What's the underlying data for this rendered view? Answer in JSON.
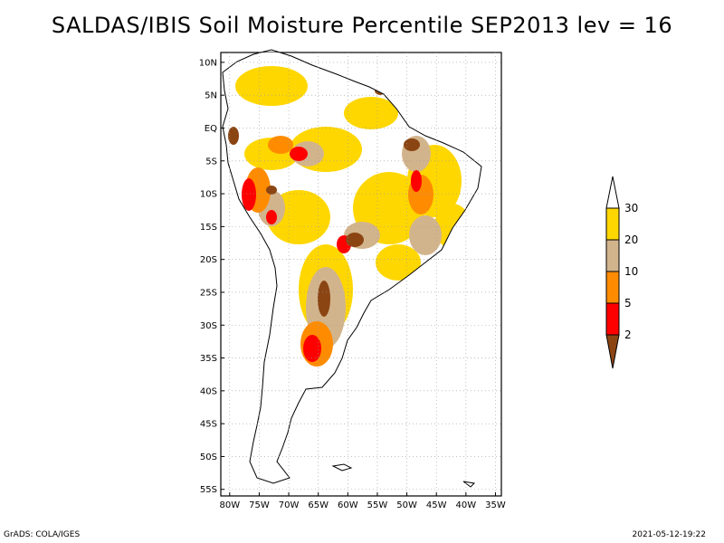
{
  "title": "SALDAS/IBIS Soil Moisture Percentile SEP2013 lev = 16",
  "footer": {
    "credit": "GrADS: COLA/IGES",
    "timestamp": "2021-05-12-19:22"
  },
  "map": {
    "lat_ticks": [
      "10N",
      "5N",
      "EQ",
      "5S",
      "10S",
      "15S",
      "20S",
      "25S",
      "30S",
      "35S",
      "40S",
      "45S",
      "50S",
      "55S"
    ],
    "lon_ticks": [
      "80W",
      "75W",
      "70W",
      "65W",
      "60W",
      "55W",
      "50W",
      "45W",
      "40W",
      "35W"
    ],
    "lat_values": [
      10,
      5,
      0,
      -5,
      -10,
      -15,
      -20,
      -25,
      -30,
      -35,
      -40,
      -45,
      -50,
      -55
    ],
    "lon_values": [
      -80,
      -75,
      -70,
      -65,
      -60,
      -55,
      -50,
      -45,
      -40,
      -35
    ],
    "lat_range": [
      -56,
      11.5
    ],
    "lon_range": [
      -81.5,
      -34
    ],
    "grid": true
  },
  "colorbar": {
    "labels": [
      "30",
      "20",
      "10",
      "5",
      "2"
    ],
    "colors": {
      "above_30": "#ffffff",
      "20_30": "#ffd700",
      "10_20": "#d2b48c",
      "5_10": "#ff8c00",
      "2_5": "#ff0000",
      "below_2": "#8b4513"
    }
  }
}
